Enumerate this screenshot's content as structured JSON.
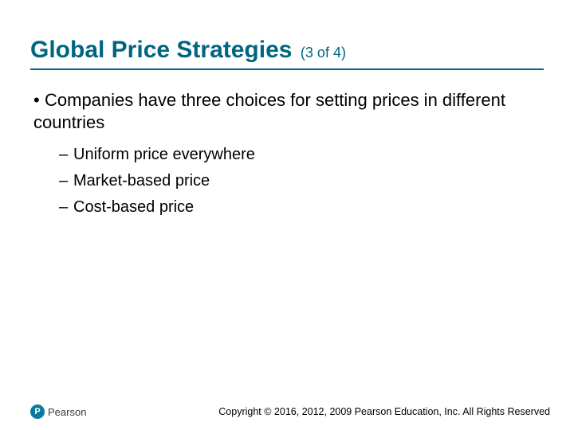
{
  "colors": {
    "title": "#006680",
    "underline": "#006680",
    "body": "#000000",
    "logo_bg": "#0a7aa0",
    "logo_text": "#3a3a3a",
    "copyright": "#000000"
  },
  "title": {
    "main": "Global Price Strategies",
    "sub": "(3 of 4)",
    "main_fontsize": 30,
    "sub_fontsize": 18
  },
  "body": {
    "l1_fontsize": 22,
    "l2_fontsize": 20,
    "bullets": [
      {
        "marker": "•",
        "text": "Companies have three choices for setting prices in different countries",
        "children": [
          {
            "dash": "–",
            "text": "Uniform price everywhere"
          },
          {
            "dash": "–",
            "text": "Market-based price"
          },
          {
            "dash": "–",
            "text": "Cost-based price"
          }
        ]
      }
    ]
  },
  "footer": {
    "logo_glyph": "P",
    "logo_text": "Pearson",
    "copyright": "Copyright © 2016, 2012, 2009 Pearson Education, Inc. All Rights Reserved"
  }
}
